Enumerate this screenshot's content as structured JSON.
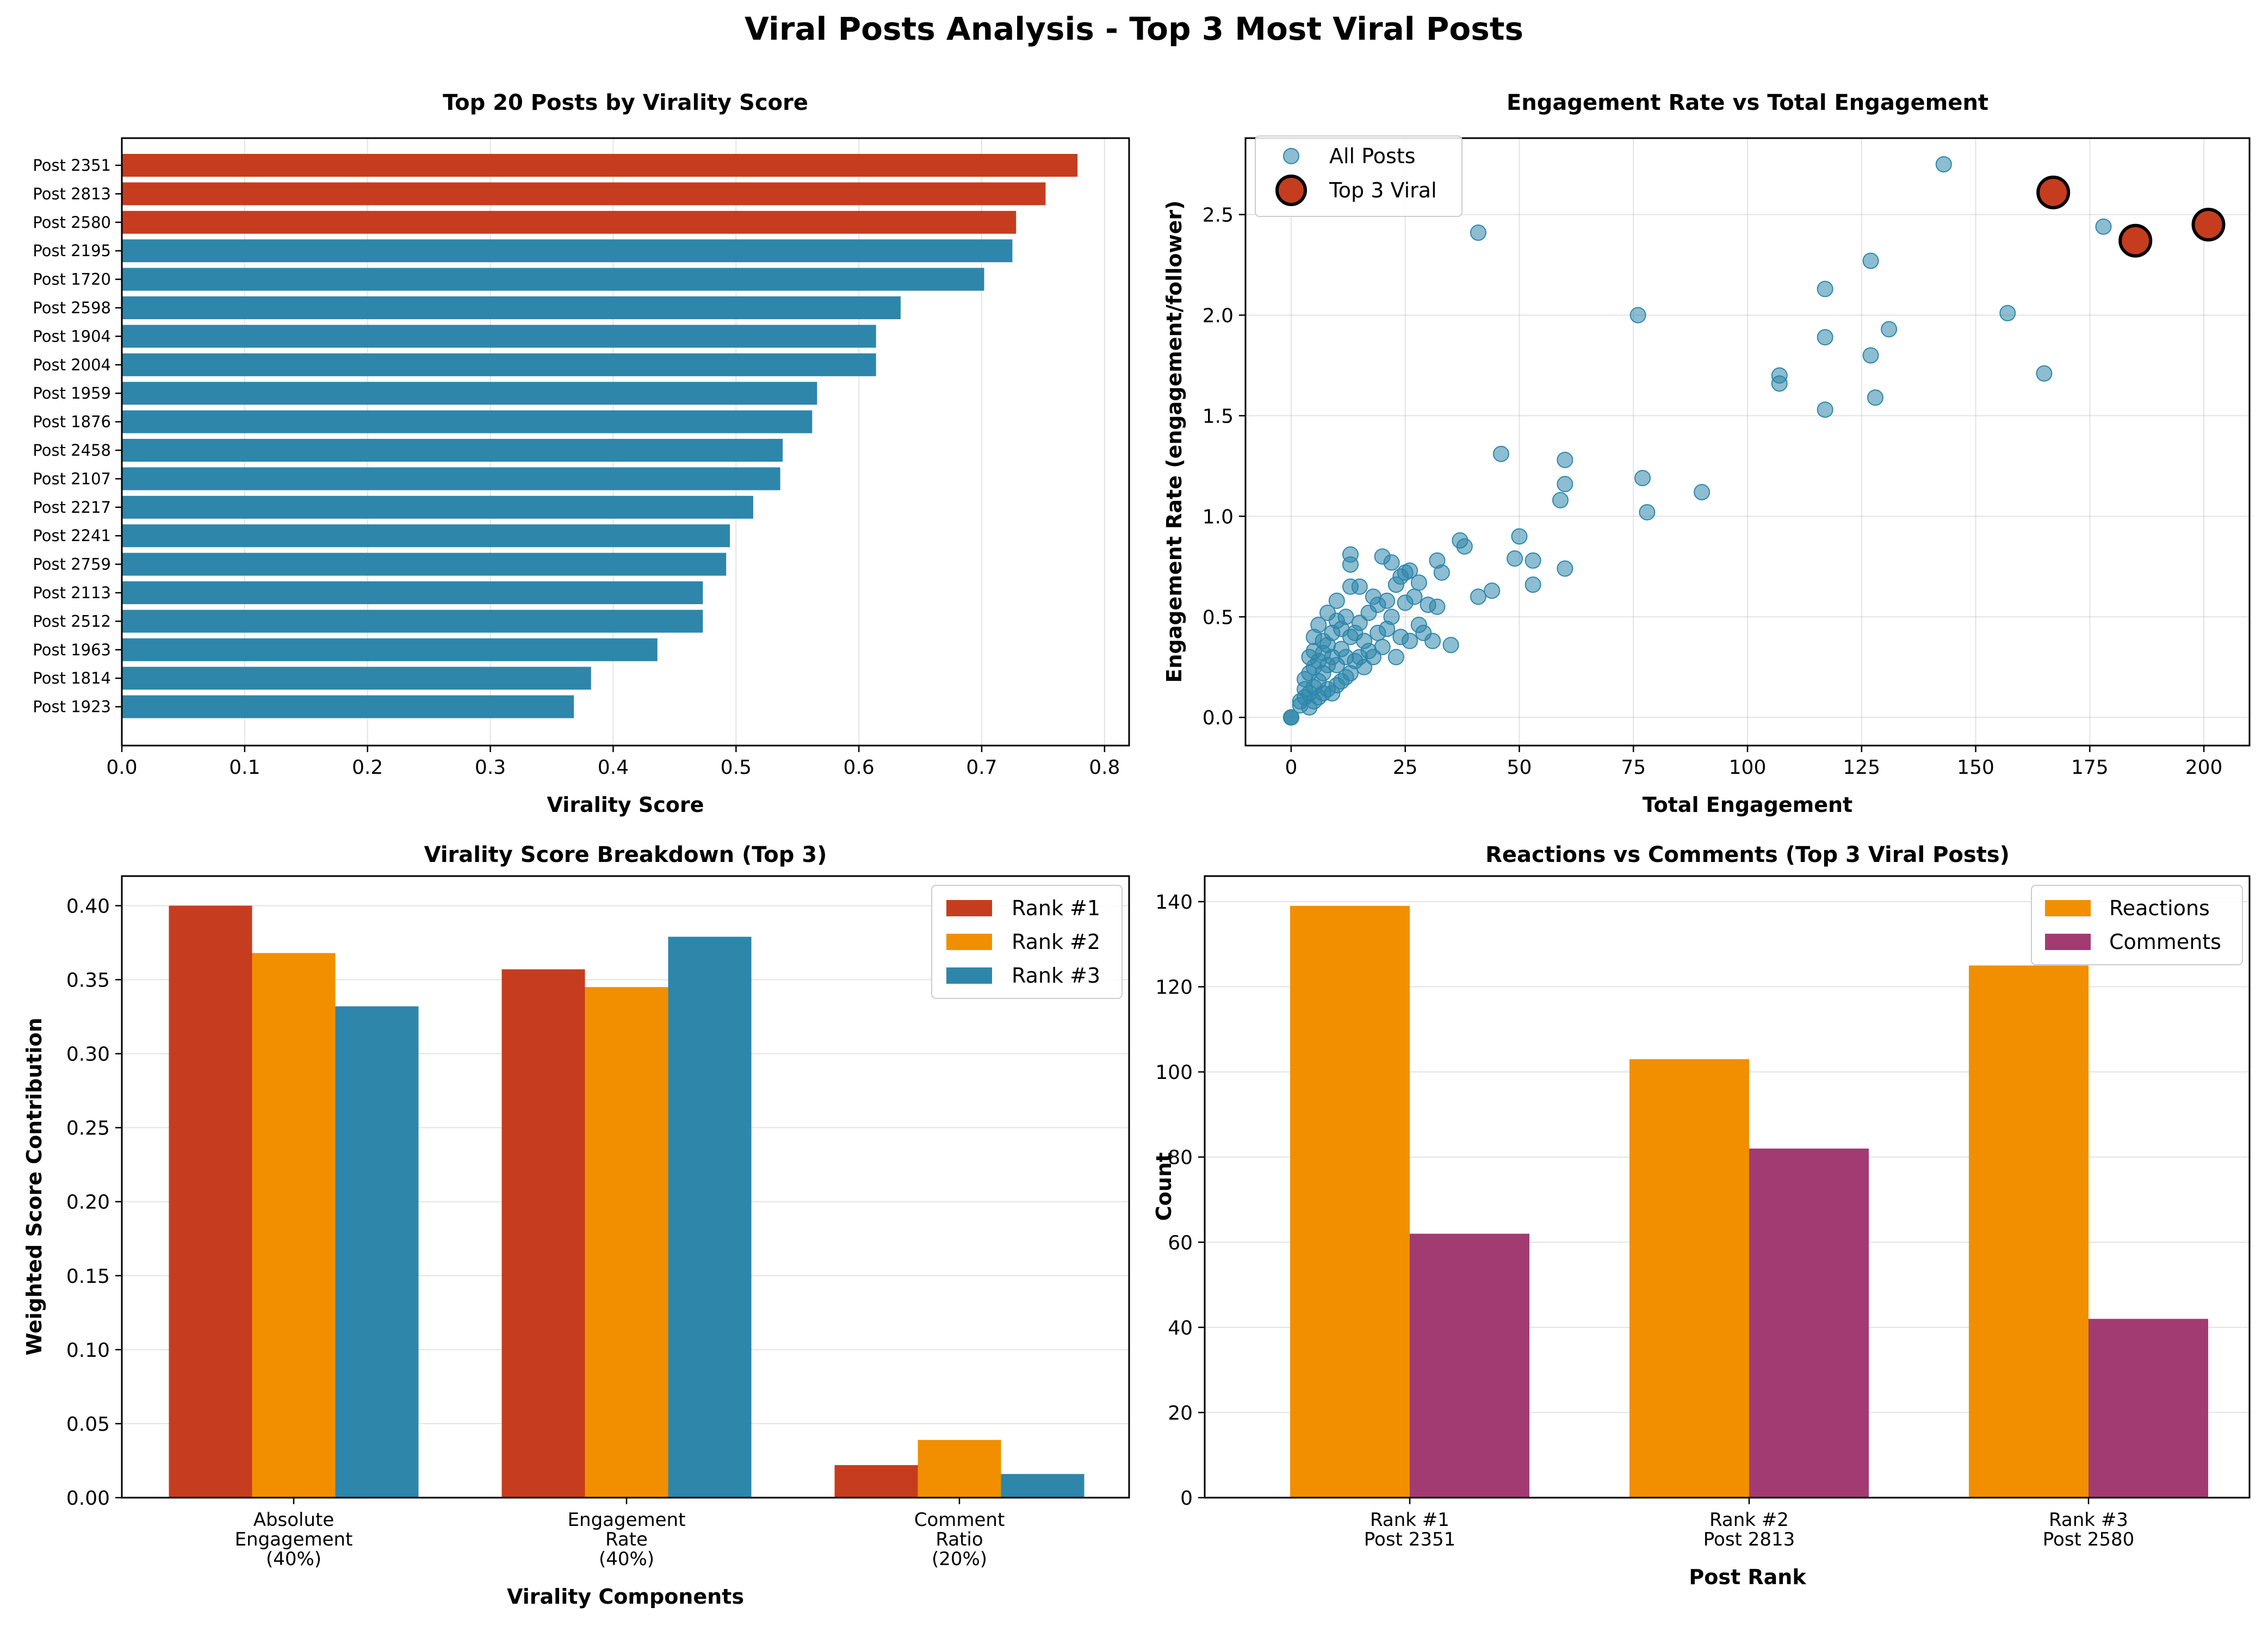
{
  "figure_title": "Viral Posts Analysis - Top 3 Most Viral Posts",
  "colors": {
    "top3": "#C53D1E",
    "rest": "#2E86AB",
    "rank2": "#F18F01",
    "comments": "#A23B72"
  },
  "chart_data": [
    {
      "type": "bar",
      "orientation": "horizontal",
      "title": "Top 20 Posts by Virality Score",
      "xlabel": "Virality Score",
      "ylabel": "",
      "xlim": [
        0,
        0.82
      ],
      "xticks": [
        0.0,
        0.1,
        0.2,
        0.3,
        0.4,
        0.5,
        0.6,
        0.7,
        0.8
      ],
      "grid": "x",
      "categories": [
        "Post 2351",
        "Post 2813",
        "Post 2580",
        "Post 2195",
        "Post 1720",
        "Post 2598",
        "Post 1904",
        "Post 2004",
        "Post 1959",
        "Post 1876",
        "Post 2458",
        "Post 2107",
        "Post 2217",
        "Post 2241",
        "Post 2759",
        "Post 2113",
        "Post 2512",
        "Post 1963",
        "Post 1814",
        "Post 1923"
      ],
      "values": [
        0.778,
        0.752,
        0.728,
        0.725,
        0.702,
        0.634,
        0.614,
        0.614,
        0.566,
        0.562,
        0.538,
        0.536,
        0.514,
        0.495,
        0.492,
        0.473,
        0.473,
        0.436,
        0.382,
        0.368
      ],
      "highlight_count": 3
    },
    {
      "type": "scatter",
      "title": "Engagement Rate vs Total Engagement",
      "xlabel": "Total Engagement",
      "ylabel": "Engagement Rate (engagement/follower)",
      "xlim": [
        -10,
        210
      ],
      "ylim": [
        -0.14,
        2.88
      ],
      "xticks": [
        0,
        25,
        50,
        75,
        100,
        125,
        150,
        175,
        200
      ],
      "yticks": [
        0.0,
        0.5,
        1.0,
        1.5,
        2.0,
        2.5
      ],
      "grid": "both",
      "legend_position": "top-left",
      "series": [
        {
          "name": "All Posts",
          "points": [
            [
              0,
              0
            ],
            [
              0,
              0
            ],
            [
              0,
              0
            ],
            [
              2,
              0.06
            ],
            [
              2,
              0.08
            ],
            [
              3,
              0.1
            ],
            [
              3,
              0.14
            ],
            [
              3,
              0.19
            ],
            [
              4,
              0.05
            ],
            [
              4,
              0.12
            ],
            [
              4,
              0.22
            ],
            [
              4,
              0.3
            ],
            [
              5,
              0.08
            ],
            [
              5,
              0.15
            ],
            [
              5,
              0.25
            ],
            [
              5,
              0.33
            ],
            [
              5,
              0.4
            ],
            [
              6,
              0.1
            ],
            [
              6,
              0.18
            ],
            [
              6,
              0.28
            ],
            [
              6,
              0.46
            ],
            [
              7,
              0.12
            ],
            [
              7,
              0.22
            ],
            [
              7,
              0.32
            ],
            [
              7,
              0.38
            ],
            [
              8,
              0.14
            ],
            [
              8,
              0.26
            ],
            [
              8,
              0.36
            ],
            [
              8,
              0.52
            ],
            [
              9,
              0.12
            ],
            [
              9,
              0.3
            ],
            [
              9,
              0.42
            ],
            [
              10,
              0.16
            ],
            [
              10,
              0.26
            ],
            [
              10,
              0.48
            ],
            [
              10,
              0.58
            ],
            [
              11,
              0.18
            ],
            [
              11,
              0.34
            ],
            [
              11,
              0.44
            ],
            [
              12,
              0.2
            ],
            [
              12,
              0.3
            ],
            [
              12,
              0.5
            ],
            [
              13,
              0.22
            ],
            [
              13,
              0.4
            ],
            [
              13,
              0.65
            ],
            [
              13,
              0.76
            ],
            [
              13,
              0.81
            ],
            [
              14,
              0.28
            ],
            [
              14,
              0.42
            ],
            [
              15,
              0.3
            ],
            [
              15,
              0.47
            ],
            [
              15,
              0.65
            ],
            [
              16,
              0.25
            ],
            [
              16,
              0.38
            ],
            [
              17,
              0.33
            ],
            [
              17,
              0.52
            ],
            [
              18,
              0.3
            ],
            [
              18,
              0.6
            ],
            [
              19,
              0.42
            ],
            [
              19,
              0.56
            ],
            [
              20,
              0.35
            ],
            [
              20,
              0.8
            ],
            [
              21,
              0.44
            ],
            [
              21,
              0.58
            ],
            [
              22,
              0.5
            ],
            [
              22,
              0.77
            ],
            [
              23,
              0.3
            ],
            [
              23,
              0.66
            ],
            [
              24,
              0.7
            ],
            [
              24,
              0.4
            ],
            [
              25,
              0.72
            ],
            [
              25,
              0.57
            ],
            [
              26,
              0.38
            ],
            [
              26,
              0.73
            ],
            [
              27,
              0.6
            ],
            [
              28,
              0.46
            ],
            [
              28,
              0.67
            ],
            [
              29,
              0.42
            ],
            [
              30,
              0.56
            ],
            [
              31,
              0.38
            ],
            [
              32,
              0.78
            ],
            [
              32,
              0.55
            ],
            [
              33,
              0.72
            ],
            [
              35,
              0.36
            ],
            [
              37,
              0.88
            ],
            [
              38,
              0.85
            ],
            [
              41,
              0.6
            ],
            [
              41,
              2.41
            ],
            [
              44,
              0.63
            ],
            [
              46,
              1.31
            ],
            [
              49,
              0.79
            ],
            [
              50,
              0.9
            ],
            [
              53,
              0.78
            ],
            [
              53,
              0.66
            ],
            [
              59,
              1.08
            ],
            [
              60,
              1.28
            ],
            [
              60,
              1.16
            ],
            [
              60,
              0.74
            ],
            [
              76,
              2.0
            ],
            [
              77,
              1.19
            ],
            [
              78,
              1.02
            ],
            [
              90,
              1.12
            ],
            [
              107,
              1.7
            ],
            [
              107,
              1.66
            ],
            [
              117,
              2.13
            ],
            [
              117,
              1.89
            ],
            [
              117,
              1.53
            ],
            [
              127,
              2.27
            ],
            [
              127,
              1.8
            ],
            [
              128,
              1.59
            ],
            [
              131,
              1.93
            ],
            [
              143,
              2.75
            ],
            [
              157,
              2.01
            ],
            [
              165,
              1.71
            ],
            [
              178,
              2.44
            ]
          ]
        },
        {
          "name": "Top 3 Viral",
          "points": [
            [
              167,
              2.61
            ],
            [
              185,
              2.37
            ],
            [
              201,
              2.45
            ]
          ]
        }
      ]
    },
    {
      "type": "bar",
      "title": "Virality Score Breakdown (Top 3)",
      "xlabel": "Virality Components",
      "ylabel": "Weighted Score Contribution",
      "ylim": [
        0,
        0.42
      ],
      "yticks": [
        0.0,
        0.05,
        0.1,
        0.15,
        0.2,
        0.25,
        0.3,
        0.35,
        0.4
      ],
      "grid": "y",
      "legend_position": "top-right",
      "categories": [
        "Absolute\nEngagement\n(40%)",
        "Engagement\nRate\n(40%)",
        "Comment\nRatio\n(20%)"
      ],
      "series": [
        {
          "name": "Rank #1",
          "values": [
            0.4,
            0.357,
            0.022
          ]
        },
        {
          "name": "Rank #2",
          "values": [
            0.368,
            0.345,
            0.039
          ]
        },
        {
          "name": "Rank #3",
          "values": [
            0.332,
            0.379,
            0.016
          ]
        }
      ]
    },
    {
      "type": "bar",
      "title": "Reactions vs Comments (Top 3 Viral Posts)",
      "xlabel": "Post Rank",
      "ylabel": "Count",
      "ylim": [
        0,
        146
      ],
      "yticks": [
        0,
        20,
        40,
        60,
        80,
        100,
        120,
        140
      ],
      "grid": "y",
      "legend_position": "top-right",
      "categories": [
        "Rank #1\nPost 2351",
        "Rank #2\nPost 2813",
        "Rank #3\nPost 2580"
      ],
      "series": [
        {
          "name": "Reactions",
          "values": [
            139,
            103,
            125
          ]
        },
        {
          "name": "Comments",
          "values": [
            62,
            82,
            42
          ]
        }
      ]
    }
  ]
}
